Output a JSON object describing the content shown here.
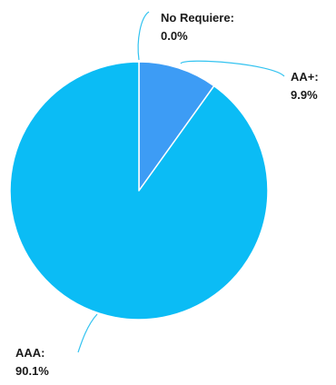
{
  "chart_data": {
    "type": "pie",
    "title": "",
    "start_angle_deg": 0,
    "direction": "clockwise",
    "slices": [
      {
        "label": "No Requiere",
        "value": 0.0,
        "display": "0.0%",
        "color": "#2f5fd0"
      },
      {
        "label": "AA+",
        "value": 9.9,
        "display": "9.9%",
        "color": "#3d9cf5"
      },
      {
        "label": "AAA",
        "value": 90.1,
        "display": "90.1%",
        "color": "#0bbcf5"
      }
    ],
    "leader_line_color": "#33c3f0"
  }
}
